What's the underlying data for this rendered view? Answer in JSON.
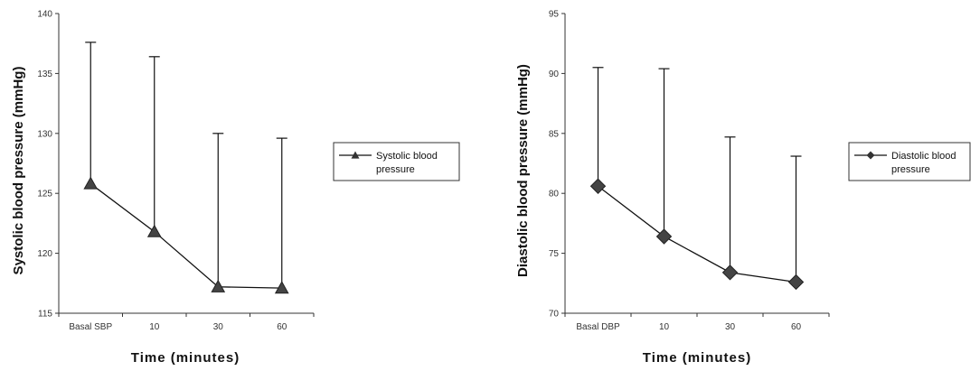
{
  "chart_data": [
    {
      "type": "line",
      "categories": [
        "Basal SBP",
        "10",
        "30",
        "60"
      ],
      "series": [
        {
          "name": "Systolic blood pressure",
          "values": [
            125.8,
            121.8,
            117.2,
            117.1
          ],
          "error_upper": [
            137.6,
            136.4,
            130.0,
            129.6
          ],
          "marker": "triangle"
        }
      ],
      "xlabel": "Time (minutes)",
      "ylabel": "Systolic blood pressure (mmHg)",
      "ylim": [
        115,
        140
      ],
      "yticks": [
        "115",
        "120",
        "125",
        "130",
        "135",
        "140"
      ],
      "legend": {
        "line1": "Systolic blood",
        "line2": "pressure",
        "position": "right"
      },
      "grid": false
    },
    {
      "type": "line",
      "categories": [
        "Basal DBP",
        "10",
        "30",
        "60"
      ],
      "series": [
        {
          "name": "Diastolic blood pressure",
          "values": [
            80.6,
            76.4,
            73.4,
            72.6
          ],
          "error_upper": [
            90.5,
            90.4,
            84.7,
            83.1
          ],
          "marker": "diamond"
        }
      ],
      "xlabel": "Time (minutes)",
      "ylabel": "Diastolic blood pressure (mmHg)",
      "ylim": [
        70,
        95
      ],
      "yticks": [
        "70",
        "75",
        "80",
        "85",
        "90",
        "95"
      ],
      "legend": {
        "line1": "Diastolic blood",
        "line2": "pressure",
        "position": "right"
      },
      "grid": false
    }
  ]
}
